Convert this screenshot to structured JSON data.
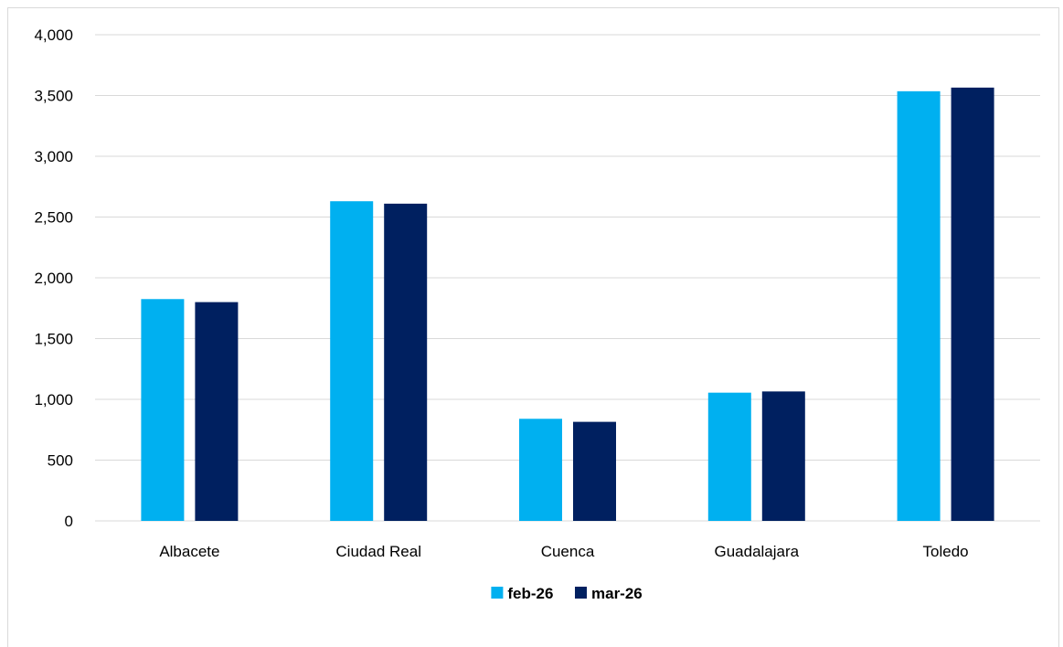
{
  "chart_data": {
    "type": "bar",
    "categories": [
      "Albacete",
      "Ciudad Real",
      "Cuenca",
      "Guadalajara",
      "Toledo"
    ],
    "series": [
      {
        "name": "feb-26",
        "color": "#00b0f0",
        "values": [
          1825,
          2630,
          840,
          1055,
          3535
        ]
      },
      {
        "name": "mar-26",
        "color": "#002060",
        "values": [
          1800,
          2610,
          815,
          1065,
          3565
        ]
      }
    ],
    "y_ticks": [
      "0",
      "500",
      "1,000",
      "1,500",
      "2,000",
      "2,500",
      "3,000",
      "3,500",
      "4,000"
    ],
    "ylim": [
      0,
      4000
    ],
    "grid": true,
    "gridline_color": "#d9d9d9",
    "legend_position": "bottom"
  }
}
